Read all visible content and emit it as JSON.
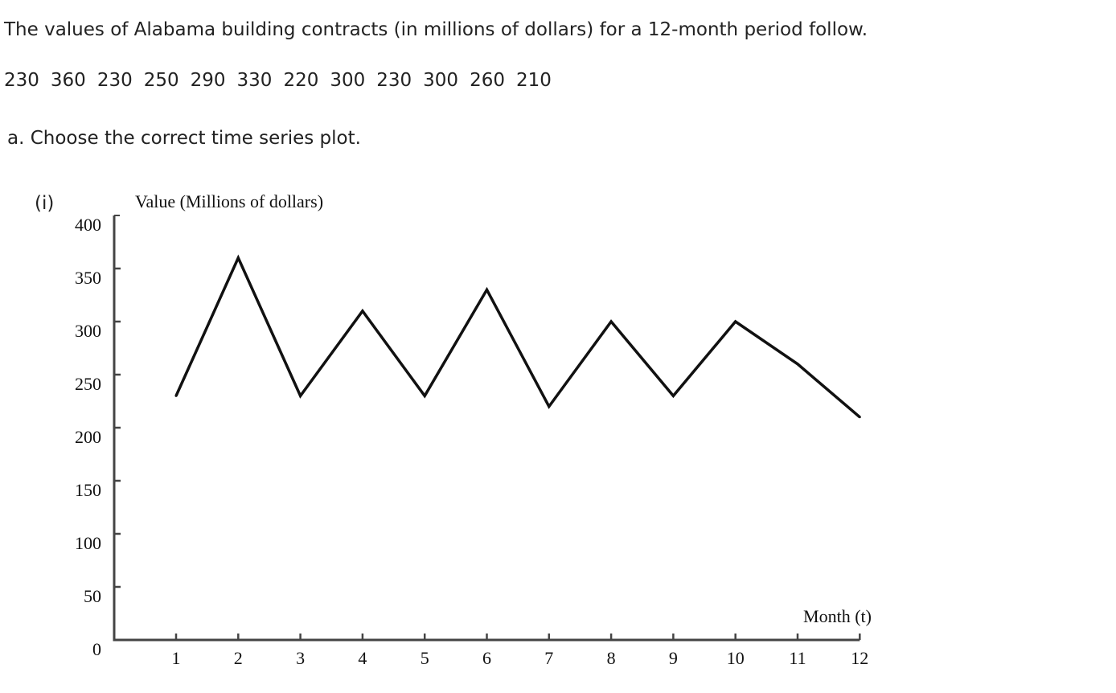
{
  "question": {
    "prompt": "The values of Alabama building contracts (in millions of dollars) for a 12-month period follow.",
    "data_values": [
      "230",
      "360",
      "230",
      "250",
      "290",
      "330",
      "220",
      "300",
      "230",
      "300",
      "260",
      "210"
    ],
    "part_a": "a. Choose the correct time series plot.",
    "option_label": "(i)"
  },
  "chart_data": {
    "type": "line",
    "title": "",
    "ylabel": "Value (Millions of dollars)",
    "xlabel": "Month (t)",
    "x": [
      1,
      2,
      3,
      4,
      5,
      6,
      7,
      8,
      9,
      10,
      11,
      12
    ],
    "series": [
      {
        "values": [
          230,
          360,
          230,
          310,
          230,
          330,
          220,
          300,
          230,
          300,
          260,
          210
        ]
      }
    ],
    "ylim": [
      0,
      400
    ],
    "yticks": [
      0,
      50,
      100,
      150,
      200,
      250,
      300,
      350,
      400
    ],
    "xticks": [
      1,
      2,
      3,
      4,
      5,
      6,
      7,
      8,
      9,
      10,
      11,
      12
    ],
    "grid": false,
    "line_color": "#111111"
  }
}
